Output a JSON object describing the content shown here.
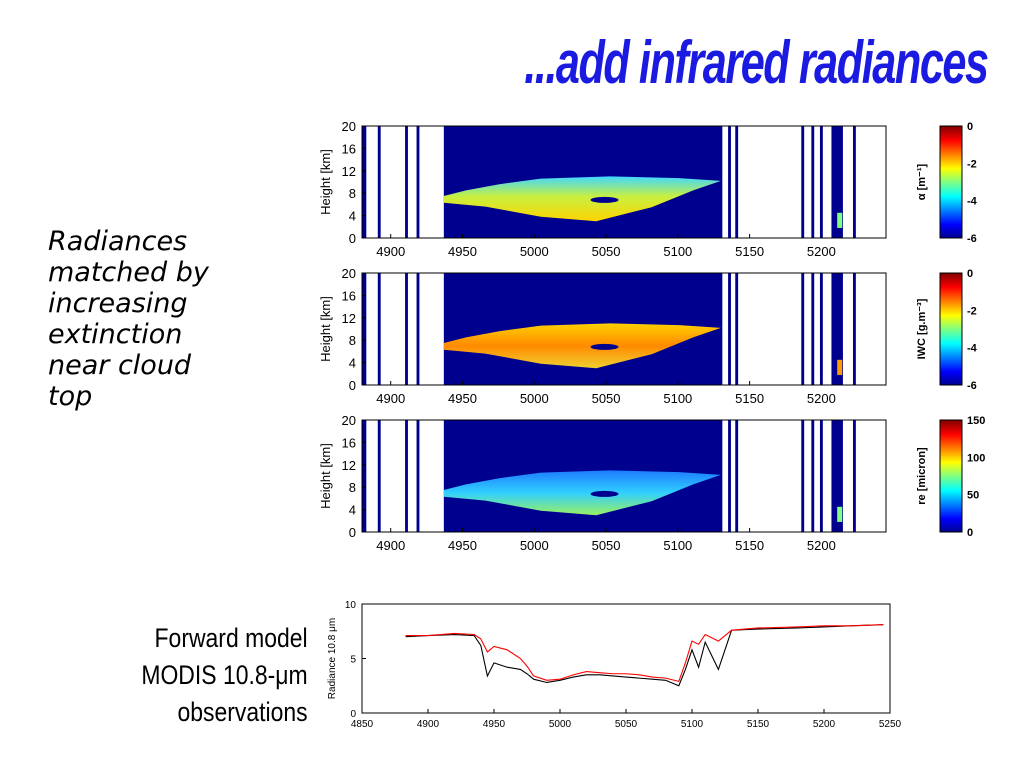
{
  "slide": {
    "title": "...add infrared radiances",
    "side_text": [
      "Radiances",
      "matched by",
      "increasing",
      "extinction",
      "near cloud",
      "top"
    ],
    "model_label": [
      "Forward model",
      "MODIS 10.8-μm",
      "observations"
    ]
  },
  "colors": {
    "title": "#1a1ae0",
    "background_field": "#00008f",
    "model_line": "#ff0000",
    "obs_line": "#000000"
  },
  "chart_data": [
    {
      "type": "heatmap",
      "ylabel": "Height [km]",
      "xticks": [
        4900,
        4950,
        5000,
        5050,
        5100,
        5150,
        5200
      ],
      "yticks": [
        0,
        4,
        8,
        12,
        16,
        20
      ],
      "xlim": [
        4880,
        5245
      ],
      "ylim": [
        0,
        20
      ],
      "field": "extinction",
      "colorbar": {
        "label": "α [m⁻¹]",
        "ticks": [
          0,
          -2,
          -4,
          -6
        ],
        "range": [
          -6,
          0
        ]
      },
      "cloud_layer": {
        "x": [
          4937,
          5130
        ],
        "height_km": [
          3,
          11
        ]
      }
    },
    {
      "type": "heatmap",
      "ylabel": "Height [km]",
      "xticks": [
        4900,
        4950,
        5000,
        5050,
        5100,
        5150,
        5200
      ],
      "yticks": [
        0,
        4,
        8,
        12,
        16,
        20
      ],
      "xlim": [
        4880,
        5245
      ],
      "ylim": [
        0,
        20
      ],
      "field": "ice water content",
      "colorbar": {
        "label": "IWC [g.m⁻³]",
        "ticks": [
          0,
          -2,
          -4,
          -6
        ],
        "range": [
          -6,
          0
        ]
      },
      "cloud_layer": {
        "x": [
          4937,
          5130
        ],
        "height_km": [
          3,
          11
        ]
      }
    },
    {
      "type": "heatmap",
      "ylabel": "Height [km]",
      "xticks": [
        4900,
        4950,
        5000,
        5050,
        5100,
        5150,
        5200
      ],
      "yticks": [
        0,
        4,
        8,
        12,
        16,
        20
      ],
      "xlim": [
        4880,
        5245
      ],
      "ylim": [
        0,
        20
      ],
      "field": "effective radius",
      "colorbar": {
        "label": "re [micron]",
        "ticks": [
          150,
          100,
          50,
          0
        ],
        "range": [
          0,
          150
        ]
      },
      "cloud_layer": {
        "x": [
          4937,
          5130
        ],
        "height_km": [
          3,
          11
        ]
      }
    },
    {
      "type": "line",
      "ylabel": "Radiance 10.8 μm",
      "xlim": [
        4850,
        5250
      ],
      "ylim": [
        0,
        10
      ],
      "xticks": [
        4850,
        4900,
        4950,
        5000,
        5050,
        5100,
        5150,
        5200,
        5250
      ],
      "yticks": [
        0,
        5,
        10
      ],
      "series": [
        {
          "color": "#ff0000",
          "x": [
            4883,
            4900,
            4920,
            4935,
            4940,
            4945,
            4950,
            4960,
            4970,
            4975,
            4980,
            4990,
            5000,
            5010,
            5020,
            5030,
            5040,
            5050,
            5060,
            5070,
            5080,
            5090,
            5095,
            5100,
            5105,
            5110,
            5120,
            5130,
            5150,
            5180,
            5200,
            5220,
            5245
          ],
          "y": [
            7.1,
            7.1,
            7.3,
            7.2,
            6.8,
            5.6,
            6.1,
            5.8,
            5.0,
            4.3,
            3.4,
            3.0,
            3.1,
            3.5,
            3.8,
            3.7,
            3.6,
            3.6,
            3.5,
            3.3,
            3.2,
            2.9,
            4.6,
            6.6,
            6.3,
            7.2,
            6.6,
            7.6,
            7.8,
            7.9,
            8.0,
            8.0,
            8.1
          ]
        },
        {
          "color": "#000000",
          "x": [
            4883,
            4900,
            4920,
            4935,
            4940,
            4945,
            4950,
            4960,
            4970,
            4975,
            4980,
            4990,
            5000,
            5010,
            5020,
            5030,
            5040,
            5050,
            5060,
            5070,
            5080,
            5090,
            5095,
            5100,
            5105,
            5110,
            5120,
            5130,
            5150,
            5180,
            5200,
            5220,
            5245
          ],
          "y": [
            7.0,
            7.1,
            7.2,
            7.1,
            6.2,
            3.4,
            4.6,
            4.2,
            4.0,
            3.6,
            3.1,
            2.8,
            3.0,
            3.3,
            3.5,
            3.5,
            3.4,
            3.3,
            3.2,
            3.1,
            3.0,
            2.5,
            4.0,
            5.8,
            4.2,
            6.5,
            4.0,
            7.6,
            7.7,
            7.8,
            7.9,
            8.0,
            8.1
          ]
        }
      ]
    }
  ]
}
